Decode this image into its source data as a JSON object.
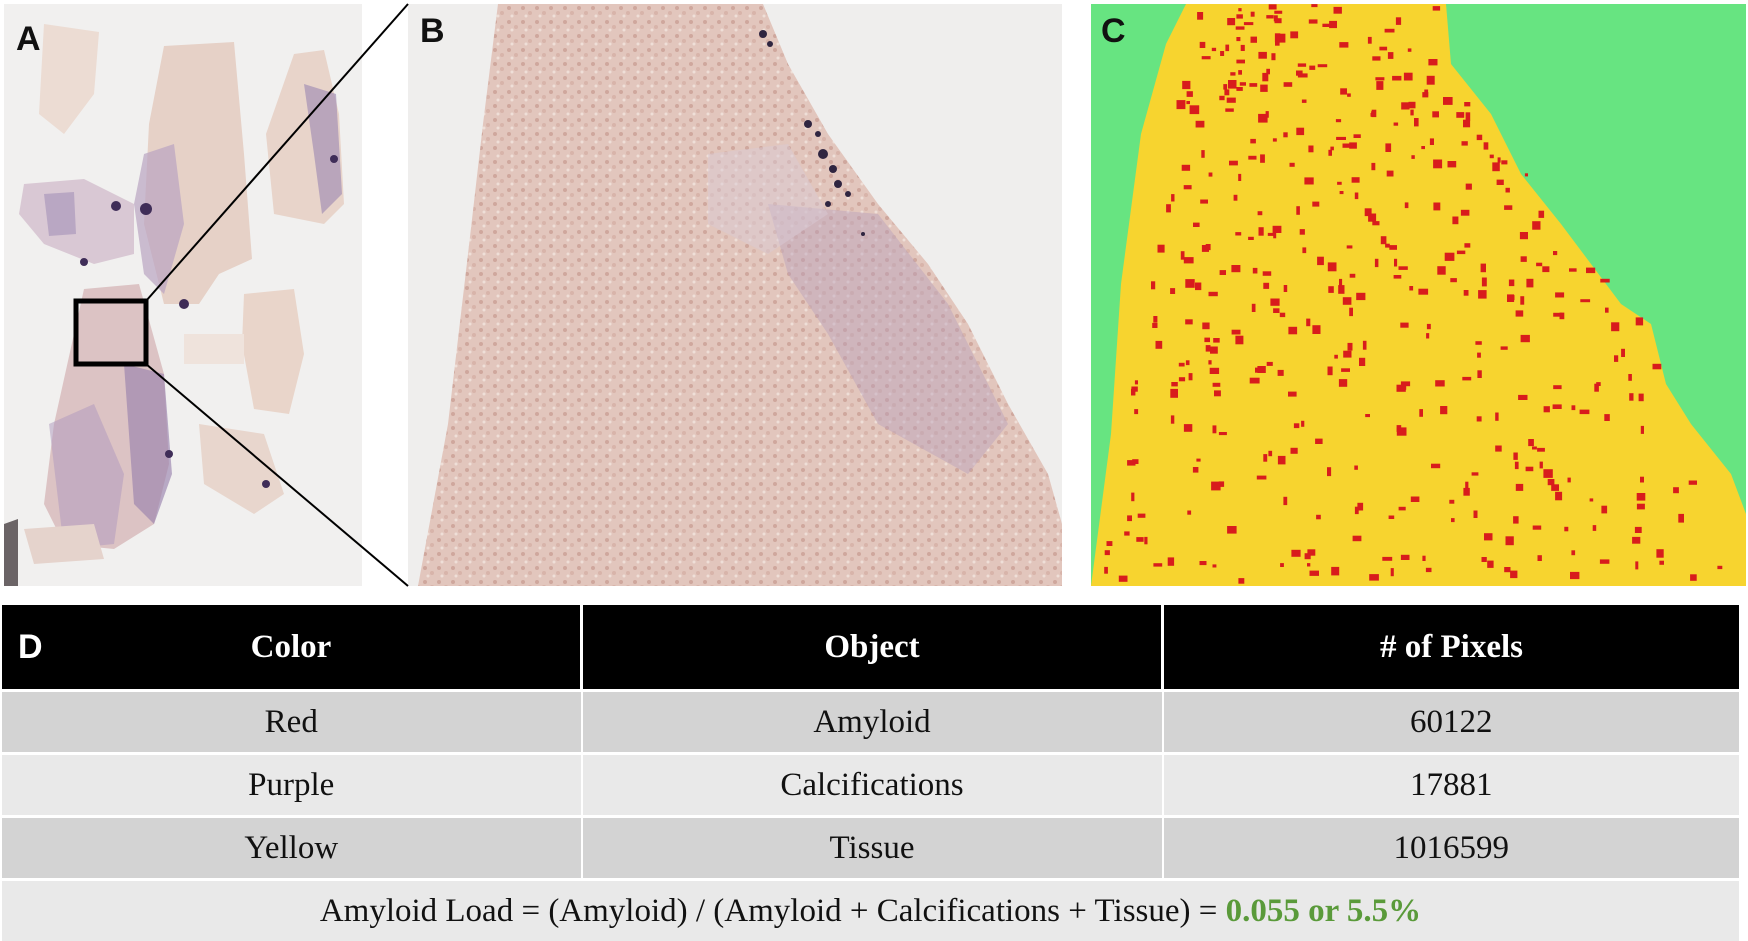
{
  "panels": {
    "a": {
      "letter": "A"
    },
    "b": {
      "letter": "B"
    },
    "c": {
      "letter": "C"
    },
    "d": {
      "letter": "D"
    }
  },
  "table": {
    "headers": [
      "Color",
      "Object",
      "# of Pixels"
    ],
    "rows": [
      {
        "color": "Red",
        "object": "Amyloid",
        "pixels": "60122"
      },
      {
        "color": "Purple",
        "object": "Calcifications",
        "pixels": "17881"
      },
      {
        "color": "Yellow",
        "object": "Tissue",
        "pixels": "1016599"
      }
    ],
    "formula": "Amyloid Load = (Amyloid) / (Amyloid + Calcifications + Tissue) = ",
    "result": "0.055 or 5.5%"
  },
  "colors": {
    "segmentation_background": "#67e481",
    "segmentation_tissue": "#f7d42f",
    "segmentation_amyloid": "#d81c1c",
    "result_text": "#5a9a3a",
    "tissue_stain": "#e3c9c0",
    "calcification_stain": "#7a5a95"
  }
}
